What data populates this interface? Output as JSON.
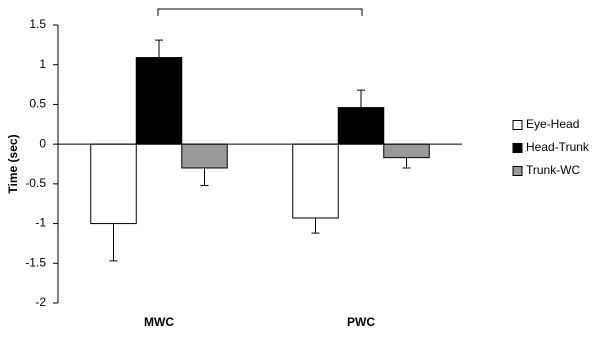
{
  "chart_data": {
    "type": "bar",
    "ylabel": "Time (sec)",
    "categories": [
      "MWC",
      "PWC"
    ],
    "series": [
      {
        "name": "Eye-Head",
        "color": "#ffffff",
        "values": [
          -1.0,
          -0.93
        ],
        "errors": [
          0.47,
          0.19
        ]
      },
      {
        "name": "Head-Trunk",
        "color": "#000000",
        "values": [
          1.09,
          0.46
        ],
        "errors": [
          0.22,
          0.22
        ]
      },
      {
        "name": "Trunk-WC",
        "color": "#999999",
        "values": [
          -0.3,
          -0.17
        ],
        "errors": [
          0.22,
          0.13
        ]
      }
    ],
    "ylim": [
      -2,
      1.5
    ],
    "yticks": [
      1.5,
      1,
      0.5,
      0,
      -0.5,
      -1,
      -1.5,
      -2
    ],
    "grid": false,
    "legend": "right"
  }
}
